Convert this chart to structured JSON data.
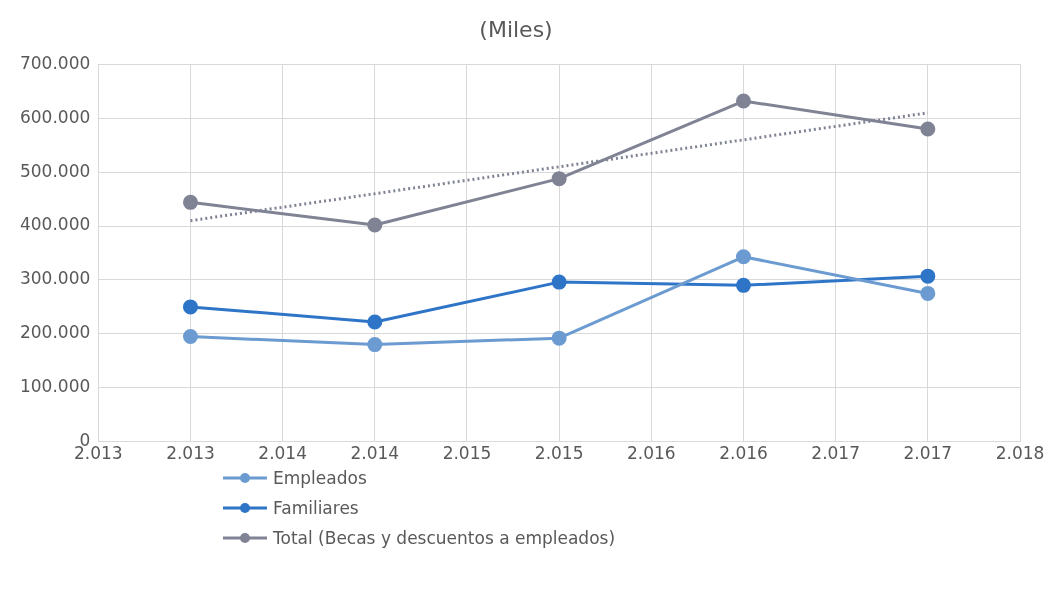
{
  "chart_data": {
    "type": "line",
    "title": "(Miles)",
    "x": [
      2013,
      2014,
      2015,
      2016,
      2017
    ],
    "series": [
      {
        "name": "Empleados",
        "color": "#6b9bd0",
        "values": [
          195000,
          180000,
          192000,
          343000,
          275000
        ]
      },
      {
        "name": "Familiares",
        "color": "#2e75c8",
        "values": [
          250000,
          222000,
          296000,
          290000,
          307000
        ]
      },
      {
        "name": "Total (Becas y descuentos a empleados)",
        "color": "#7f8394",
        "values": [
          444000,
          402000,
          488000,
          632000,
          580000
        ]
      },
      {
        "type": "line",
        "color": "#7f8394",
        "line_style": "dotted",
        "marker": "none",
        "x": [
          2013,
          2017
        ],
        "values": [
          410000,
          610000
        ]
      }
    ],
    "xlim": [
      2012.5,
      2017.5
    ],
    "xticks": [
      {
        "value": 2012.5,
        "label": "2.013"
      },
      {
        "value": 2013,
        "label": "2.013"
      },
      {
        "value": 2013.5,
        "label": "2.014"
      },
      {
        "value": 2014,
        "label": "2.014"
      },
      {
        "value": 2014.5,
        "label": "2.015"
      },
      {
        "value": 2015,
        "label": "2.015"
      },
      {
        "value": 2015.5,
        "label": "2.016"
      },
      {
        "value": 2016,
        "label": "2.016"
      },
      {
        "value": 2016.5,
        "label": "2.017"
      },
      {
        "value": 2017,
        "label": "2.017"
      },
      {
        "value": 2017.5,
        "label": "2.018"
      }
    ],
    "ylim": [
      0,
      700000
    ],
    "yticks": [
      {
        "value": 0,
        "label": "0"
      },
      {
        "value": 100000,
        "label": "100.000"
      },
      {
        "value": 200000,
        "label": "200.000"
      },
      {
        "value": 300000,
        "label": "300.000"
      },
      {
        "value": 400000,
        "label": "400.000"
      },
      {
        "value": 500000,
        "label": "500.000"
      },
      {
        "value": 600000,
        "label": "600.000"
      },
      {
        "value": 700000,
        "label": "700.000"
      }
    ],
    "grid": true,
    "legend": "bottom",
    "marker": "circle",
    "line_style": "solid"
  }
}
